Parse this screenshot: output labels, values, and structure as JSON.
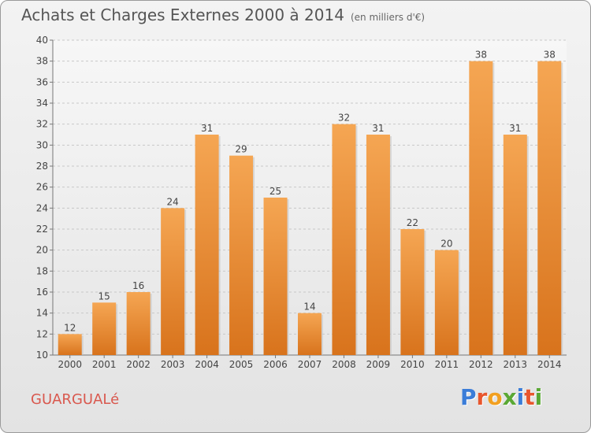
{
  "header": {
    "title": "Achats et Charges Externes 2000 à 2014",
    "subtitle": "(en milliers d'€)"
  },
  "footer": {
    "place": "GUARGUALé",
    "brand": "Proxiti"
  },
  "colors": {
    "bar_top": "#f5a653",
    "bar_bottom": "#d8731c",
    "place": "#d9584e",
    "brand": [
      "#3b7dd8",
      "#e8562d",
      "#f2a021",
      "#5aa834",
      "#3b7dd8",
      "#e8562d",
      "#5aa834"
    ]
  },
  "chart_data": {
    "type": "bar",
    "title": "Achats et Charges Externes 2000 à 2014",
    "categories": [
      "2000",
      "2001",
      "2002",
      "2003",
      "2004",
      "2005",
      "2006",
      "2007",
      "2008",
      "2009",
      "2010",
      "2011",
      "2012",
      "2013",
      "2014"
    ],
    "values": [
      12,
      15,
      16,
      24,
      31,
      29,
      25,
      14,
      32,
      31,
      22,
      20,
      38,
      31,
      38
    ],
    "ylim": [
      10,
      40
    ],
    "yticks": [
      10,
      12,
      14,
      16,
      18,
      20,
      22,
      24,
      26,
      28,
      30,
      32,
      34,
      36,
      38,
      40
    ],
    "grid": true,
    "xlabel": "",
    "ylabel": ""
  }
}
